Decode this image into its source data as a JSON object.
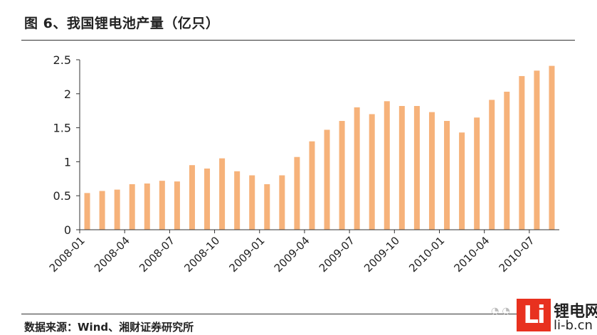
{
  "title": "图 6、我国锂电池产量（亿只）",
  "source": "数据来源：Wind、湘财证券研究所",
  "logo": {
    "mark": "Li",
    "name_cn": "锂电网",
    "domain": "li-b.cn"
  },
  "colors": {
    "bar": "#f6b27a",
    "axis": "#333333",
    "text": "#222222",
    "logo": "#e8311f"
  },
  "chart_data": {
    "type": "bar",
    "title": "图 6、我国锂电池产量（亿只）",
    "xlabel": "",
    "ylabel": "",
    "ylim": [
      0,
      2.5
    ],
    "yticks": [
      "0",
      "0.5",
      "1",
      "1.5",
      "2",
      "2.5"
    ],
    "ytick_values": [
      0,
      0.5,
      1,
      1.5,
      2,
      2.5
    ],
    "xtick_labels": [
      "2008-01",
      "2008-04",
      "2008-07",
      "2008-10",
      "2009-01",
      "2009-04",
      "2009-07",
      "2009-10",
      "2010-01",
      "2010-04",
      "2010-07"
    ],
    "categories": [
      "2008-01",
      "2008-02",
      "2008-03",
      "2008-04",
      "2008-05",
      "2008-06",
      "2008-07",
      "2008-08",
      "2008-09",
      "2008-10",
      "2008-11",
      "2008-12",
      "2009-01",
      "2009-02",
      "2009-03",
      "2009-04",
      "2009-05",
      "2009-06",
      "2009-07",
      "2009-08",
      "2009-09",
      "2009-10",
      "2009-11",
      "2009-12",
      "2010-01",
      "2010-02",
      "2010-03",
      "2010-04",
      "2010-05",
      "2010-06",
      "2010-07",
      "2010-08"
    ],
    "values": [
      0.54,
      0.57,
      0.59,
      0.67,
      0.68,
      0.72,
      0.71,
      0.95,
      0.9,
      1.05,
      0.86,
      0.8,
      0.67,
      0.8,
      1.07,
      1.3,
      1.47,
      1.6,
      1.8,
      1.7,
      1.89,
      1.82,
      1.82,
      1.73,
      1.6,
      1.43,
      1.65,
      1.91,
      2.03,
      2.26,
      2.34,
      2.41
    ],
    "grid": false,
    "legend": "none"
  }
}
